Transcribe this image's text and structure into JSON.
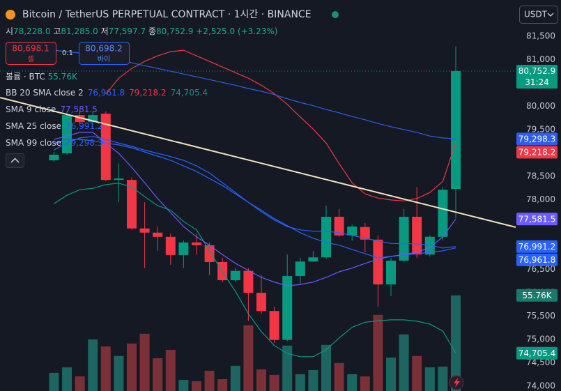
{
  "chart_data": {
    "type": "candlestick",
    "title": "Bitcoin / TetherUS PERPETUAL CONTRACT · 1시간 · BINANCE",
    "currency": "USDT",
    "ohlc": [
      {
        "label": "시",
        "value": "78,228.0"
      },
      {
        "label": "고",
        "value": "81,285.0"
      },
      {
        "label": "저",
        "value": "77,597.7"
      },
      {
        "label": "종",
        "value": "80,752.9"
      }
    ],
    "change": "+2,525.0 (+3.23%)",
    "order": {
      "sell_price": "80,698.1",
      "sell_label": "셀",
      "size": "0.1",
      "buy_price": "80,698.2",
      "buy_label": "바이"
    },
    "ylim": [
      73895,
      82277
    ],
    "yticks": [
      {
        "value": 81500,
        "label": "81,500"
      },
      {
        "value": 81000,
        "label": "81,000"
      },
      {
        "value": 80000,
        "label": "80,000"
      },
      {
        "value": 79500,
        "label": "79,500"
      },
      {
        "value": 78500,
        "label": "78,500"
      },
      {
        "value": 78000,
        "label": "78,000"
      },
      {
        "value": 76500,
        "label": "76,500"
      },
      {
        "value": 76000,
        "label": "76,000"
      },
      {
        "value": 75500,
        "label": "75,500"
      },
      {
        "value": 75000,
        "label": "75,000"
      },
      {
        "value": 74500,
        "label": "74,500"
      },
      {
        "value": 74000,
        "label": "74,000"
      }
    ],
    "candles": {
      "up_color": "#089981",
      "down_color": "#f23645",
      "open": [
        78840,
        78990,
        79810,
        79660,
        79840,
        78420,
        78420,
        77380,
        77290,
        77200,
        76810,
        77080,
        77020,
        76660,
        76270,
        76470,
        76000,
        75610,
        74990,
        76360,
        76670,
        76760,
        77630,
        77230,
        77410,
        77140,
        76180,
        76690,
        77630,
        76820,
        77200,
        78228.0
      ],
      "high": [
        79020,
        79890,
        79890,
        79890,
        79890,
        78770,
        78470,
        77940,
        77420,
        77270,
        77120,
        77270,
        77080,
        76750,
        76530,
        76530,
        76380,
        75700,
        76820,
        76750,
        76900,
        77870,
        77800,
        77470,
        77500,
        77230,
        76750,
        77800,
        78270,
        77230,
        78270,
        81285.0
      ],
      "low": [
        78810,
        78960,
        79590,
        79620,
        78390,
        77940,
        77350,
        76530,
        76900,
        76600,
        76530,
        76820,
        76380,
        76230,
        76230,
        75400,
        75550,
        74930,
        74960,
        76180,
        76660,
        76720,
        77200,
        77120,
        76870,
        75700,
        75930,
        76660,
        76750,
        76780,
        77120,
        77597.7
      ],
      "close": [
        78960,
        79810,
        79660,
        79810,
        78420,
        78450,
        77380,
        77290,
        77200,
        76810,
        77080,
        77020,
        76660,
        76270,
        76470,
        76000,
        75610,
        74990,
        76360,
        76670,
        76760,
        77630,
        77230,
        77420,
        77140,
        76180,
        76690,
        77630,
        76820,
        77200,
        78210,
        80752.9
      ],
      "last_label": "80,752.9",
      "countdown": "31:24"
    },
    "volume": {
      "name": "볼륨 · BTC",
      "up_color": "#1d6560",
      "down_color": "#7a3036",
      "tag_color": "#1c7a6d",
      "ylim": [
        0,
        228
      ],
      "values": [
        10.6,
        13.8,
        8.5,
        30.1,
        26.0,
        20.4,
        27.7,
        33.4,
        19.1,
        24.0,
        6.5,
        5.7,
        11.8,
        6.9,
        14.7,
        38.3,
        12.6,
        9.4,
        26.5,
        9.8,
        12.2,
        26.9,
        16.3,
        9.8,
        8.5,
        44.4,
        19.5,
        33.0,
        20.4,
        13.8,
        14.2,
        55.76
      ],
      "last_label": "55.76K"
    },
    "indicators": [
      {
        "name": "BB 20 SMA close 2",
        "lines": [
          {
            "color": "#2962ff",
            "last_label": "76,961.8",
            "values": [
              79210,
              79290,
              79290,
              79260,
              79210,
              79170,
              79110,
              79020,
              78930,
              78840,
              78720,
              78600,
              78450,
              78300,
              78120,
              77940,
              77770,
              77590,
              77440,
              77290,
              77170,
              77080,
              77020,
              76930,
              76840,
              76750,
              76780,
              76810,
              76840,
              76870,
              76900,
              76961.8
            ]
          },
          {
            "color": "#f23645",
            "last_label": "79,218.2",
            "values": [
              null,
              null,
              null,
              null,
              80260,
              80600,
              80810,
              80960,
              81080,
              81170,
              81200,
              81080,
              80960,
              80840,
              80720,
              80600,
              80450,
              80270,
              80040,
              79770,
              79510,
              79210,
              78770,
              78360,
              78120,
              78030,
              77990,
              77970,
              78020,
              78150,
              78390,
              79218.2
            ]
          },
          {
            "color": "#089981",
            "last_label": "74,705.4",
            "values": [
              77910,
              78090,
              78210,
              78240,
              78320,
              78350,
              78270,
              78060,
              77870,
              77770,
              77530,
              77350,
              76900,
              76450,
              76030,
              75550,
              75170,
              74870,
              74700,
              74630,
              74630,
              74780,
              75030,
              75260,
              75370,
              75400,
              75420,
              75420,
              75390,
              75330,
              75180,
              74705.4
            ]
          }
        ]
      },
      {
        "name": "SMA 9 close",
        "lines": [
          {
            "color": "#6a5cff",
            "last_label": "77,581.5",
            "values": [
              79290,
              79360,
              79440,
              79440,
              79210,
              78990,
              78690,
              78360,
              78020,
              77720,
              77420,
              77200,
              77020,
              76820,
              76630,
              76480,
              76330,
              76230,
              76150,
              76180,
              76230,
              76330,
              76450,
              76530,
              76630,
              76720,
              76780,
              76820,
              76870,
              76970,
              77200,
              77581.5
            ]
          }
        ]
      },
      {
        "name": "SMA 25 close",
        "lines": [
          {
            "color": "#2962ff",
            "last_label": "76,991.2",
            "values": [
              79060,
              79210,
              79320,
              79350,
              79290,
              79210,
              79140,
              79060,
              78990,
              78920,
              78840,
              78720,
              78570,
              78360,
              78150,
              77940,
              77740,
              77560,
              77420,
              77350,
              77320,
              77320,
              77290,
              77230,
              77170,
              77110,
              77060,
              77050,
              77050,
              77020,
              76960,
              76991.2
            ]
          }
        ]
      },
      {
        "name": "SMA 99 close",
        "lines": [
          {
            "color": "#2f5fe8",
            "last_label": "79,298.3",
            "values": [
              81200,
              81170,
              81140,
              81110,
              81080,
              81020,
              80930,
              80870,
              80810,
              80750,
              80690,
              80630,
              80570,
              80510,
              80450,
              80380,
              80320,
              80250,
              80160,
              80080,
              80010,
              79930,
              79860,
              79780,
              79710,
              79630,
              79560,
              79500,
              79440,
              79360,
              79320,
              79298.3
            ]
          }
        ]
      }
    ]
  }
}
